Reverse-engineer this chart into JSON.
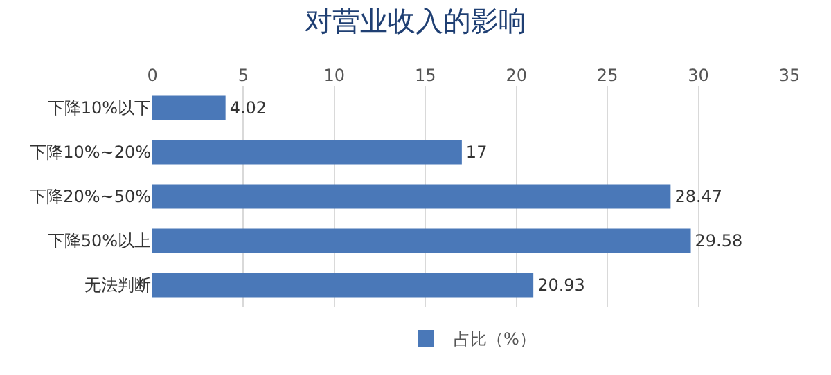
{
  "chart_data": {
    "type": "bar",
    "title": "对营业收入的影响",
    "orientation": "horizontal",
    "categories": [
      "下降10%以下",
      "下降10%~20%",
      "下降20%~50%",
      "下降50%以上",
      "无法判断"
    ],
    "series": [
      {
        "name": "占比（%）",
        "color": "#4a78b8",
        "values": [
          4.02,
          17,
          28.47,
          29.58,
          20.93
        ]
      }
    ],
    "xlim": [
      0,
      35
    ],
    "xticks": [
      0,
      5,
      10,
      15,
      20,
      25,
      30,
      35
    ],
    "grid": "x",
    "legend": "bottom",
    "data_labels": true
  }
}
